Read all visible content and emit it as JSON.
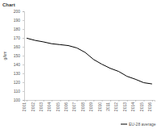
{
  "chart_data": {
    "type": "line",
    "title": "Chart",
    "y_label": "g/km",
    "categories": [
      "2001",
      "2002",
      "2003",
      "2004",
      "2005",
      "2006",
      "2007",
      "2008",
      "2009",
      "2010",
      "2011",
      "2012",
      "2013",
      "2014",
      "2015",
      "2016"
    ],
    "series": [
      {
        "name": "EU-28 average",
        "color": "#000000",
        "values": [
          169.7,
          167.2,
          165.5,
          163.4,
          162.4,
          161.3,
          158.7,
          153.6,
          145.7,
          140.3,
          135.7,
          132.2,
          126.7,
          123.4,
          119.5,
          118.1
        ]
      }
    ],
    "ylim": [
      100,
      200
    ],
    "yticks": [
      100,
      110,
      120,
      130,
      140,
      150,
      160,
      170,
      180,
      190,
      200
    ],
    "grid": false,
    "legend": "bottom"
  }
}
